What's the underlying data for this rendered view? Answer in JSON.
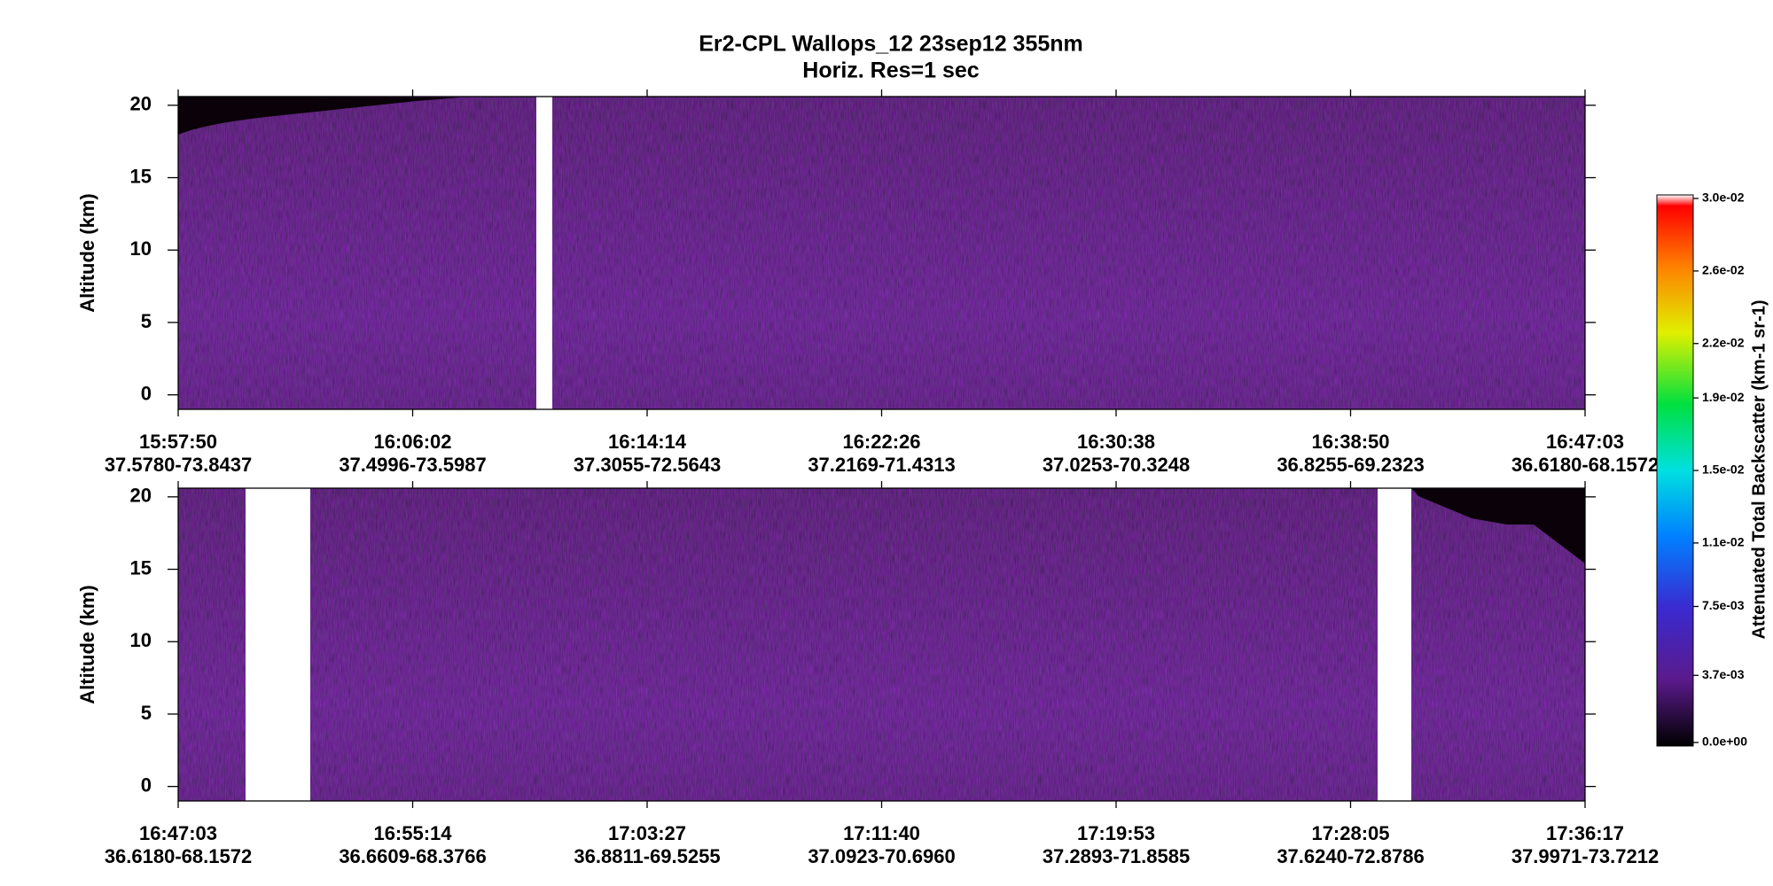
{
  "title": "Er2-CPL  Wallops_12  23sep12  355nm",
  "subtitle": "Horiz. Res=1 sec",
  "chart_data": [
    {
      "type": "curtain",
      "y_label": "Altitude (km)",
      "ylim": [
        -1,
        20.6
      ],
      "yticks": [
        0,
        5,
        10,
        15,
        20
      ],
      "x": [
        "15:57:50",
        "16:06:02",
        "16:14:14",
        "16:22:26",
        "16:30:38",
        "16:38:50",
        "16:47:03"
      ],
      "x_sublabels": [
        "37.5780-73.8437",
        "37.4996-73.5987",
        "37.3055-72.5643",
        "37.2169-71.4313",
        "37.0253-70.3248",
        "36.8255-69.2323",
        "36.6180-68.1572"
      ]
    },
    {
      "type": "curtain",
      "y_label": "Altitude (km)",
      "ylim": [
        -1,
        20.6
      ],
      "yticks": [
        0,
        5,
        10,
        15,
        20
      ],
      "x": [
        "16:47:03",
        "16:55:14",
        "17:03:27",
        "17:11:40",
        "17:19:53",
        "17:28:05",
        "17:36:17"
      ],
      "x_sublabels": [
        "36.6180-68.1572",
        "36.6609-68.3766",
        "36.8811-69.5255",
        "37.0923-70.6960",
        "37.2893-71.8585",
        "37.6240-72.8786",
        "37.9971-73.7212"
      ]
    }
  ],
  "colorbar": {
    "label": "Attenuated Total Backscatter (km-1 sr-1)",
    "lim": [
      0,
      0.03
    ],
    "ticks": [
      {
        "value": 0,
        "label": "0.0e+00"
      },
      {
        "value": 0.0037,
        "label": "3.7e-03"
      },
      {
        "value": 0.0075,
        "label": "7.5e-03"
      },
      {
        "value": 0.011,
        "label": "1.1e-02"
      },
      {
        "value": 0.015,
        "label": "1.5e-02"
      },
      {
        "value": 0.019,
        "label": "1.9e-02"
      },
      {
        "value": 0.022,
        "label": "2.2e-02"
      },
      {
        "value": 0.026,
        "label": "2.6e-02"
      },
      {
        "value": 0.03,
        "label": "3.0e-02"
      }
    ]
  }
}
